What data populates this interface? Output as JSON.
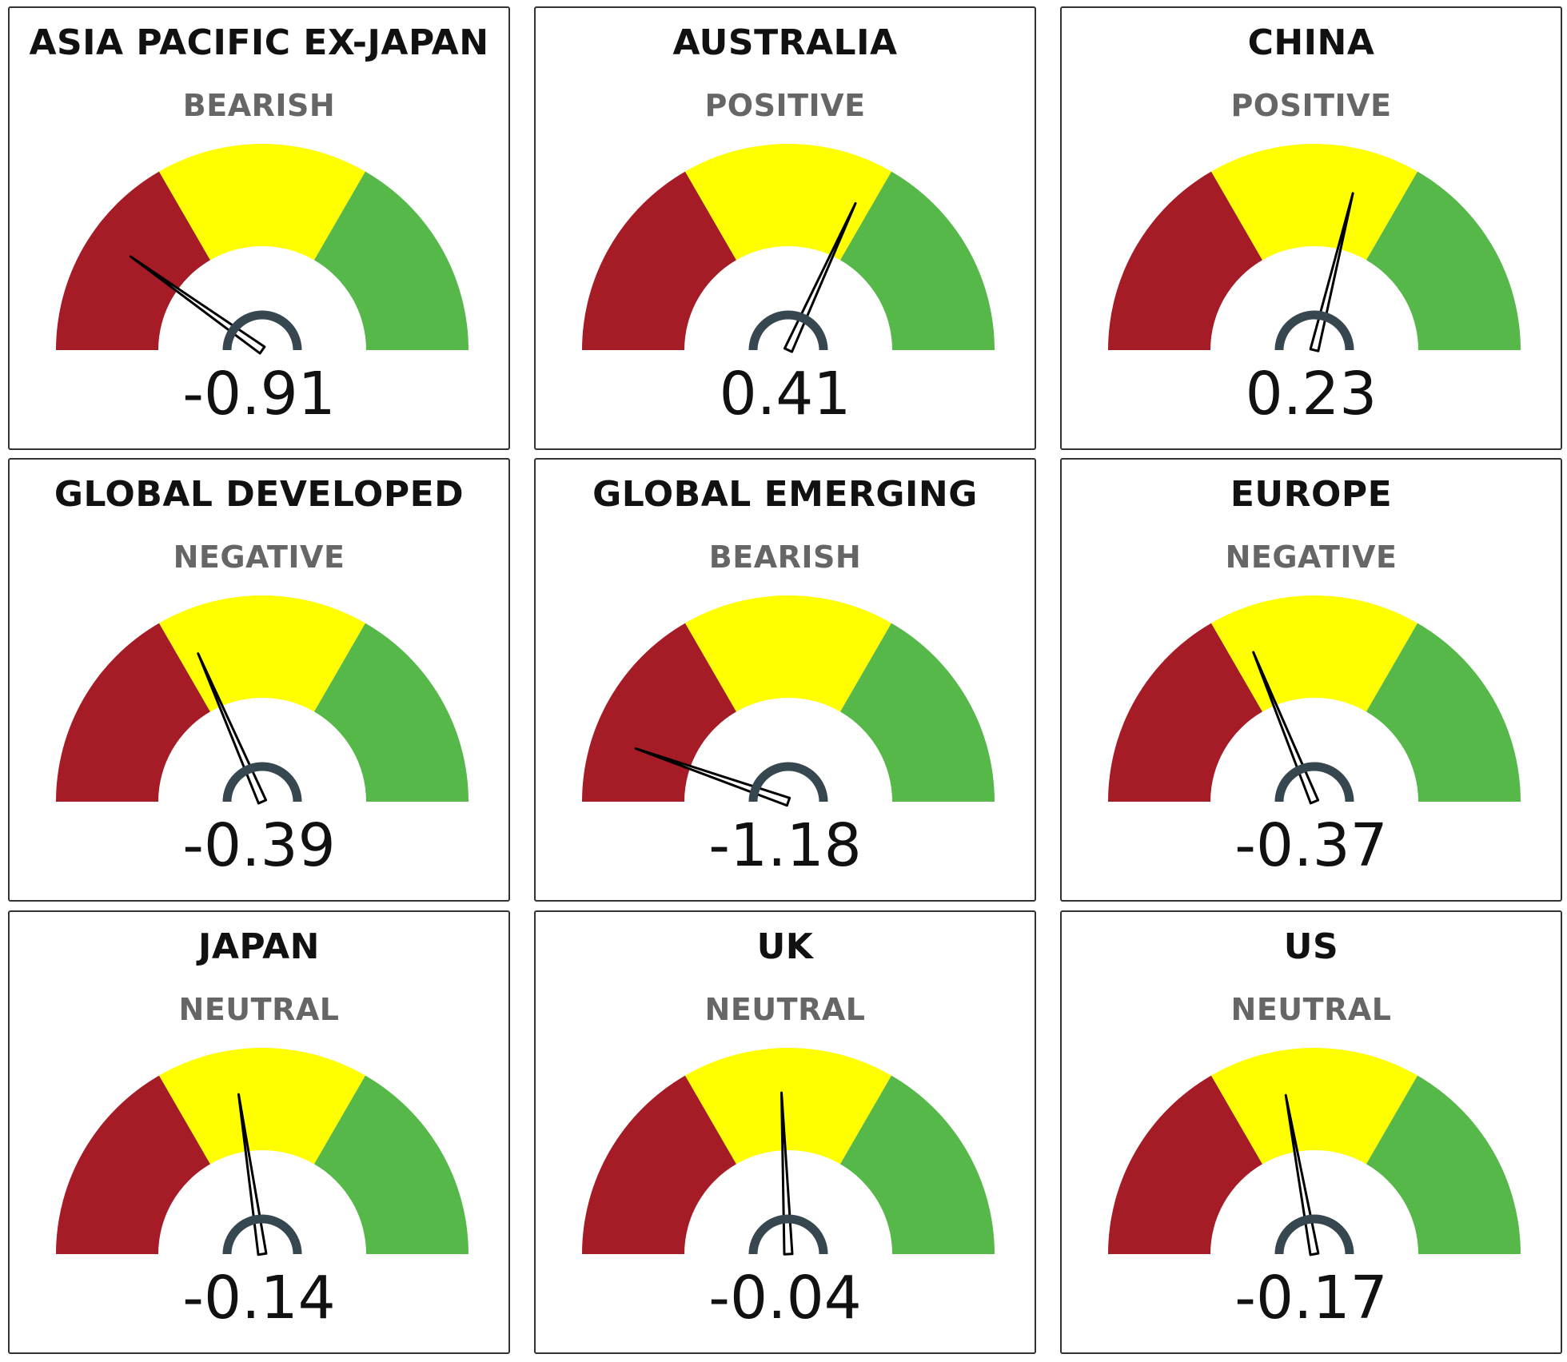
{
  "colors": {
    "bearish_band": "#a51c26",
    "neutral_band": "#ffff00",
    "positive_band": "#55b848",
    "hub": "#37474f",
    "needle": "#000000"
  },
  "chart_data": [
    {
      "type": "gauge",
      "title": "ASIA PACIFIC EX-JAPAN",
      "status": "BEARISH",
      "value": -0.91,
      "value_label": "-0.91",
      "range": [
        -1.5,
        1.5
      ],
      "bands": [
        [
          -1.5,
          -0.5
        ],
        [
          -0.5,
          0.5
        ],
        [
          0.5,
          1.5
        ]
      ]
    },
    {
      "type": "gauge",
      "title": "AUSTRALIA",
      "status": "POSITIVE",
      "value": 0.41,
      "value_label": "0.41",
      "range": [
        -1.5,
        1.5
      ],
      "bands": [
        [
          -1.5,
          -0.5
        ],
        [
          -0.5,
          0.5
        ],
        [
          0.5,
          1.5
        ]
      ]
    },
    {
      "type": "gauge",
      "title": "CHINA",
      "status": "POSITIVE",
      "value": 0.23,
      "value_label": "0.23",
      "range": [
        -1.5,
        1.5
      ],
      "bands": [
        [
          -1.5,
          -0.5
        ],
        [
          -0.5,
          0.5
        ],
        [
          0.5,
          1.5
        ]
      ]
    },
    {
      "type": "gauge",
      "title": "GLOBAL DEVELOPED",
      "status": "NEGATIVE",
      "value": -0.39,
      "value_label": "-0.39",
      "range": [
        -1.5,
        1.5
      ],
      "bands": [
        [
          -1.5,
          -0.5
        ],
        [
          -0.5,
          0.5
        ],
        [
          0.5,
          1.5
        ]
      ]
    },
    {
      "type": "gauge",
      "title": "GLOBAL EMERGING",
      "status": "BEARISH",
      "value": -1.18,
      "value_label": "-1.18",
      "range": [
        -1.5,
        1.5
      ],
      "bands": [
        [
          -1.5,
          -0.5
        ],
        [
          -0.5,
          0.5
        ],
        [
          0.5,
          1.5
        ]
      ]
    },
    {
      "type": "gauge",
      "title": "EUROPE",
      "status": "NEGATIVE",
      "value": -0.37,
      "value_label": "-0.37",
      "range": [
        -1.5,
        1.5
      ],
      "bands": [
        [
          -1.5,
          -0.5
        ],
        [
          -0.5,
          0.5
        ],
        [
          0.5,
          1.5
        ]
      ]
    },
    {
      "type": "gauge",
      "title": "JAPAN",
      "status": "NEUTRAL",
      "value": -0.14,
      "value_label": "-0.14",
      "range": [
        -1.5,
        1.5
      ],
      "bands": [
        [
          -1.5,
          -0.5
        ],
        [
          -0.5,
          0.5
        ],
        [
          0.5,
          1.5
        ]
      ]
    },
    {
      "type": "gauge",
      "title": "UK",
      "status": "NEUTRAL",
      "value": -0.04,
      "value_label": "-0.04",
      "range": [
        -1.5,
        1.5
      ],
      "bands": [
        [
          -1.5,
          -0.5
        ],
        [
          -0.5,
          0.5
        ],
        [
          0.5,
          1.5
        ]
      ]
    },
    {
      "type": "gauge",
      "title": "US",
      "status": "NEUTRAL",
      "value": -0.17,
      "value_label": "-0.17",
      "range": [
        -1.5,
        1.5
      ],
      "bands": [
        [
          -1.5,
          -0.5
        ],
        [
          -0.5,
          0.5
        ],
        [
          0.5,
          1.5
        ]
      ]
    }
  ]
}
